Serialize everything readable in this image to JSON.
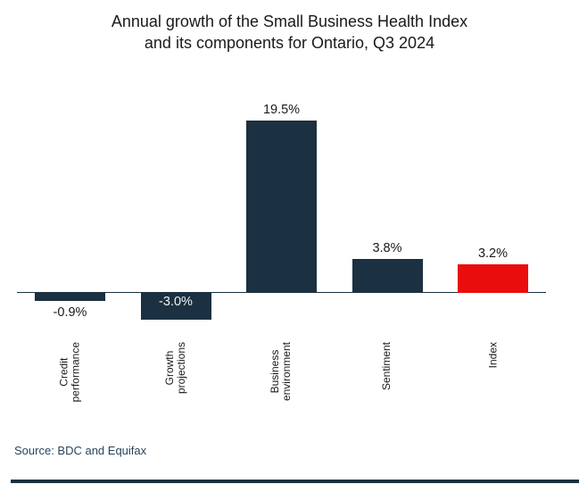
{
  "title": {
    "line1": "Annual growth of the Small Business Health Index",
    "line2": "and its components for Ontario, Q3 2024"
  },
  "source_text": "Source: BDC and Equifax",
  "colors": {
    "background": "#ffffff",
    "bar_default": "#1b3040",
    "bar_highlight": "#e90d0d",
    "axis_line": "#1b3040",
    "title_text": "#1a1a1a",
    "value_label_dark": "#1a1a1a",
    "value_label_light": "#f2f2f2",
    "source_text": "#27455f",
    "bottom_rule": "#1b3040"
  },
  "chart_data": {
    "type": "bar",
    "title": "Annual growth of the Small Business Health Index and its components for Ontario, Q3 2024",
    "categories": [
      "Credit performance",
      "Growth projections",
      "Business environment",
      "Sentiment",
      "Index"
    ],
    "category_label_lines": [
      [
        "Credit",
        "performance"
      ],
      [
        "Growth",
        "projections"
      ],
      [
        "Business",
        "environment"
      ],
      [
        "Sentiment"
      ],
      [
        "Index"
      ]
    ],
    "values": [
      -0.9,
      -3.0,
      19.5,
      3.8,
      3.2
    ],
    "value_labels": [
      "-0.9%",
      "-3.0%",
      "19.5%",
      "3.8%",
      "3.2%"
    ],
    "bar_colors": [
      "#1b3040",
      "#1b3040",
      "#1b3040",
      "#1b3040",
      "#e90d0d"
    ],
    "value_label_placements": [
      "below",
      "inside-top",
      "above",
      "above",
      "above"
    ],
    "xlabel": "",
    "ylabel": "",
    "ylim": [
      -4,
      21
    ],
    "grid": false,
    "legend": null,
    "baseline": 0,
    "source": "Source: BDC and Equifax"
  }
}
